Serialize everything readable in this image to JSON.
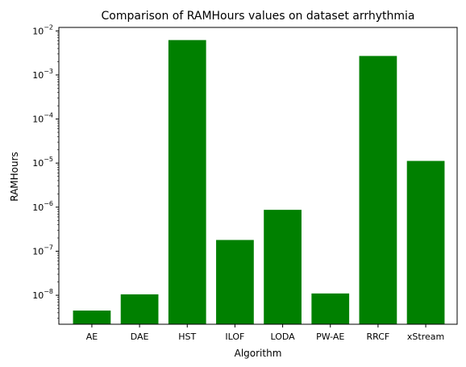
{
  "chart_data": {
    "type": "bar",
    "title": "Comparison of RAMHours values on dataset arrhythmia",
    "xlabel": "Algorithm",
    "ylabel": "RAMHours",
    "yscale": "log",
    "ylim": [
      2.2e-09,
      0.012
    ],
    "yticks": [
      {
        "value": 1e-08,
        "base": "10",
        "exp": "−8"
      },
      {
        "value": 1e-07,
        "base": "10",
        "exp": "−7"
      },
      {
        "value": 1e-06,
        "base": "10",
        "exp": "−6"
      },
      {
        "value": 1e-05,
        "base": "10",
        "exp": "−5"
      },
      {
        "value": 0.0001,
        "base": "10",
        "exp": "−4"
      },
      {
        "value": 0.001,
        "base": "10",
        "exp": "−3"
      },
      {
        "value": 0.01,
        "base": "10",
        "exp": "−2"
      }
    ],
    "categories": [
      "AE",
      "DAE",
      "HST",
      "ILOF",
      "LODA",
      "PW-AE",
      "RRCF",
      "xStream"
    ],
    "values": [
      4.5e-09,
      1.05e-08,
      0.0062,
      1.8e-07,
      8.7e-07,
      1.1e-08,
      0.0027,
      1.12e-05
    ],
    "bar_color": "#008000",
    "grid": false,
    "legend": "none"
  }
}
